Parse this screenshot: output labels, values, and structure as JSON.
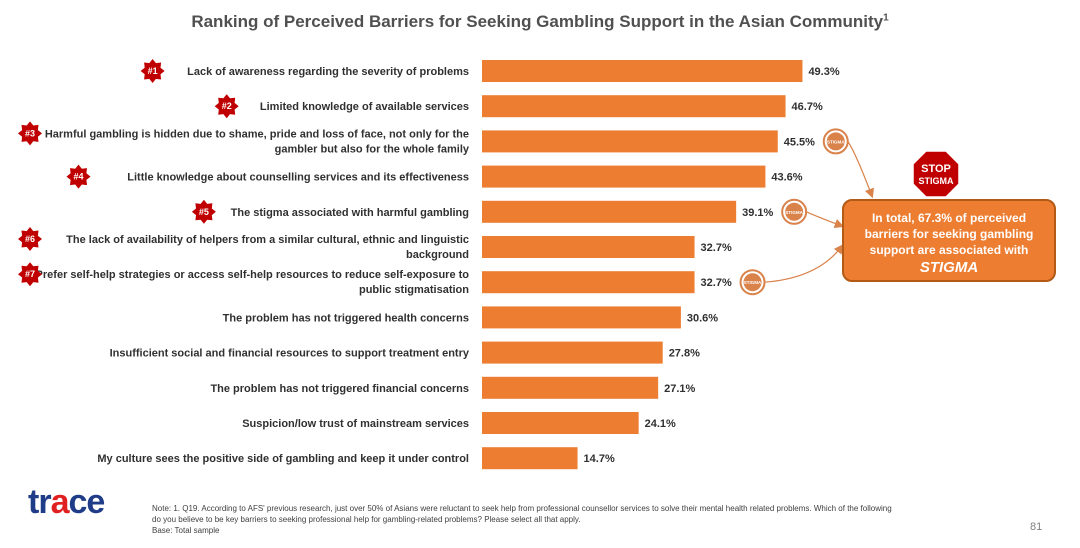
{
  "title": "Ranking of Perceived Barriers for Seeking Gambling Support in the Asian Community",
  "title_footnote": "1",
  "chart_data": {
    "type": "bar",
    "orientation": "horizontal",
    "bar_color": "#ed7d31",
    "xlim": [
      0,
      50
    ],
    "categories": [
      "Lack of awareness regarding the severity of problems",
      "Limited knowledge of available services",
      "Harmful gambling is hidden due to shame, pride and loss of face, not only for the gambler but also for the whole family",
      "Little knowledge about counselling services and its effectiveness",
      "The stigma associated with harmful gambling",
      "The lack of availability of helpers from a similar cultural, ethnic and linguistic background",
      "Prefer self-help strategies or access self-help resources to reduce self-exposure to public stigmatisation",
      "The problem has not triggered health concerns",
      "Insufficient social and financial resources to support treatment entry",
      "The problem has not triggered financial concerns",
      "Suspicion/low trust of mainstream services",
      "My culture sees the positive side of gambling and keep it under control"
    ],
    "label_lines": [
      [
        "Lack of awareness regarding the severity of problems"
      ],
      [
        "Limited knowledge of available services"
      ],
      [
        "Harmful gambling is hidden due to shame, pride and loss of face, not only for the",
        "gambler but also for the whole family"
      ],
      [
        "Little knowledge about counselling services and its effectiveness"
      ],
      [
        "The stigma associated with harmful gambling"
      ],
      [
        "The lack of availability of helpers from a similar cultural, ethnic and linguistic",
        "background"
      ],
      [
        "Prefer self-help strategies or access self-help resources to reduce self-exposure to",
        "public stigmatisation"
      ],
      [
        "The problem has not triggered health concerns"
      ],
      [
        "Insufficient social and financial resources to support treatment entry"
      ],
      [
        "The problem has not triggered financial concerns"
      ],
      [
        "Suspicion/low trust of mainstream services"
      ],
      [
        "My culture sees the positive side of gambling and keep it under control"
      ]
    ],
    "values": [
      49.3,
      46.7,
      45.5,
      43.6,
      39.1,
      32.7,
      32.7,
      30.6,
      27.8,
      27.1,
      24.1,
      14.7
    ],
    "value_labels": [
      "49.3%",
      "46.7%",
      "45.5%",
      "43.6%",
      "39.1%",
      "32.7%",
      "32.7%",
      "30.6%",
      "27.8%",
      "27.1%",
      "24.1%",
      "14.7%"
    ],
    "rank_badges": [
      "#1",
      "#2",
      "#3",
      "#4",
      "#5",
      "#6",
      "#7",
      "",
      "",
      "",
      "",
      ""
    ],
    "stigma_marked": [
      false,
      false,
      true,
      false,
      true,
      false,
      true,
      false,
      false,
      false,
      false,
      false
    ],
    "badge_color": "#c00000",
    "stigma_badge_color": "#d9824a"
  },
  "stigma_badge_text": "STIGMA",
  "stop_sign": {
    "line1": "STOP",
    "line2": "STIGMA",
    "color": "#c00000"
  },
  "callout": {
    "line1": "In total, 67.3% of perceived",
    "line2": "barriers for seeking gambling",
    "line3": "support are associated with",
    "line4": "STIGMA",
    "color": "#ed7d31"
  },
  "logo": {
    "part1": "t",
    "part2": "r",
    "part3": "a",
    "part4": "ce"
  },
  "note": {
    "line1": "Note: 1. Q19. According to AFS' previous research, just over 50% of Asians were reluctant to seek help from professional counsellor services to solve their mental health related problems. Which of the following",
    "line2": "do you believe to be key barriers to seeking professional help for gambling-related problems? Please select all that apply.",
    "line3": "Base: Total sample"
  },
  "page_number": "81"
}
